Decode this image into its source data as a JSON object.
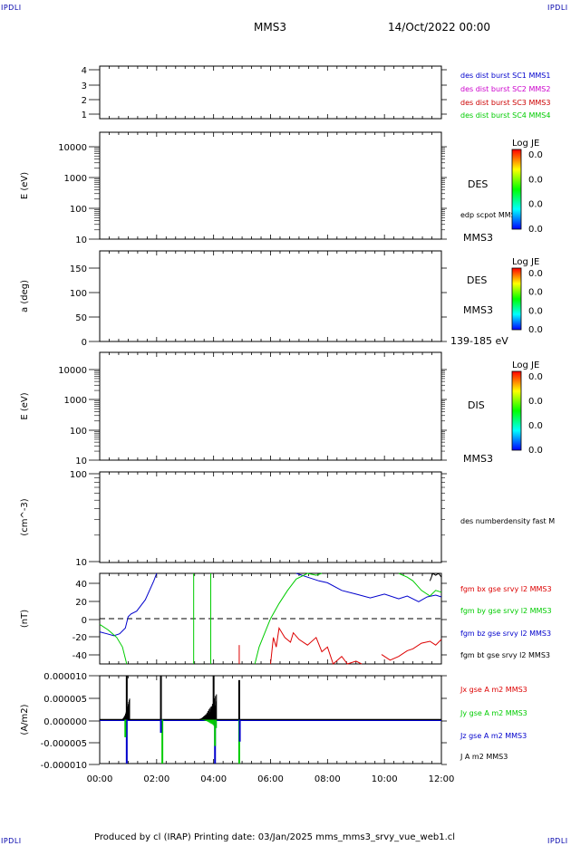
{
  "corner_label": "IPDLI",
  "header": {
    "mission": "MMS3",
    "date": "14/Oct/2022 00:00"
  },
  "footer": "Produced by cl (IRAP)   Printing date: 03/Jan/2025   mms_mms3_srvy_vue_web1.cl",
  "colors": {
    "mms1": "#0000cc",
    "mms2": "#cc00cc",
    "mms3": "#cc0000",
    "mms4": "#00cc00",
    "red": "#dd0000",
    "green": "#00cc00",
    "blue": "#0000cc",
    "black": "#000000"
  },
  "chart_data": [
    {
      "type": "line",
      "id": "burst",
      "yticks": [
        "4",
        "3",
        "2",
        "1"
      ],
      "legend": [
        {
          "label": "des dist burst SC1 MMS1",
          "color": "#0000cc"
        },
        {
          "label": "des dist burst SC2 MMS2",
          "color": "#cc00cc"
        },
        {
          "label": "des dist burst SC3 MMS3",
          "color": "#cc0000"
        },
        {
          "label": "des dist burst SC4 MMS4",
          "color": "#00cc00"
        }
      ]
    },
    {
      "type": "heatmap",
      "id": "des-energy",
      "ylabel": "E (eV)",
      "yscale": "log",
      "yticks": [
        "10000",
        "1000",
        "100",
        "10"
      ],
      "label": "DES",
      "sublabel": "edp scpot MMS3",
      "bottom_label": "MMS3",
      "colorbar": {
        "title": "Log JE",
        "ticks": [
          "0.0",
          "0.0",
          "0.0",
          "0.0"
        ]
      }
    },
    {
      "type": "heatmap",
      "id": "des-pitch",
      "ylabel": "a (deg)",
      "yticks": [
        "150",
        "100",
        "50",
        "0"
      ],
      "label": "DES",
      "sublabel": "MMS3",
      "bottom_label": "139-185 eV",
      "colorbar": {
        "title": "Log JE",
        "ticks": [
          "0.0",
          "0.0",
          "0.0",
          "0.0"
        ]
      }
    },
    {
      "type": "heatmap",
      "id": "dis-energy",
      "ylabel": "E (eV)",
      "yscale": "log",
      "yticks": [
        "10000",
        "1000",
        "100",
        "10"
      ],
      "label": "DIS",
      "bottom_label": "MMS3",
      "colorbar": {
        "title": "Log JE",
        "ticks": [
          "0.0",
          "0.0",
          "0.0",
          "0.0"
        ]
      }
    },
    {
      "type": "line",
      "id": "density",
      "ylabel": "(cm^-3)",
      "yscale": "log",
      "yticks": [
        "100",
        "10"
      ],
      "legend": [
        {
          "label": "des numberdensity fast M",
          "color": "#000000"
        }
      ]
    },
    {
      "type": "line",
      "id": "fgm",
      "ylabel": "(nT)",
      "ylim": [
        -48,
        48
      ],
      "yticks": [
        "40",
        "20",
        "0",
        "-20",
        "-40"
      ],
      "legend": [
        {
          "label": "fgm bx gse srvy l2 MMS3",
          "color": "#dd0000"
        },
        {
          "label": "fgm by gse srvy l2 MMS3",
          "color": "#00cc00"
        },
        {
          "label": "fgm bz gse srvy l2 MMS3",
          "color": "#0000cc"
        },
        {
          "label": "fgm bt gse srvy l2 MMS3",
          "color": "#000000"
        }
      ],
      "series": [
        {
          "name": "fgm bz gse srvy l2 MMS3",
          "color": "#0000cc",
          "x": [
            0,
            0.25,
            0.5,
            0.7,
            0.9,
            1.0,
            1.1,
            1.3,
            1.6,
            1.9,
            2.0
          ],
          "y": [
            -14,
            -16,
            -18,
            -16,
            -10,
            2,
            5,
            8,
            20,
            40,
            48
          ]
        },
        {
          "name": "fgm bz gse srvy l2 MMS3",
          "color": "#0000cc",
          "x": [
            6.9,
            7.3,
            7.7,
            8.0,
            8.5,
            9.0,
            9.5,
            10.0,
            10.5,
            10.8,
            11.2,
            11.5,
            11.8,
            12.0
          ],
          "y": [
            48,
            44,
            40,
            38,
            30,
            26,
            22,
            26,
            21,
            24,
            18,
            23,
            25,
            23
          ]
        },
        {
          "name": "fgm by gse srvy l2 MMS3",
          "color": "#00cc00",
          "x": [
            0,
            0.3,
            0.6,
            0.8,
            0.95
          ],
          "y": [
            -6,
            -12,
            -20,
            -30,
            -48
          ]
        },
        {
          "name": "fgm by gse srvy l2 MMS3",
          "color": "#00cc00",
          "x": [
            5.45,
            5.6,
            5.8,
            6.0,
            6.3,
            6.6,
            6.9,
            7.3,
            7.6,
            7.8
          ],
          "y": [
            -48,
            -30,
            -15,
            0,
            16,
            30,
            42,
            48,
            46,
            48
          ]
        },
        {
          "name": "fgm by gse srvy l2 MMS3",
          "color": "#00cc00",
          "x": [
            10.5,
            10.8,
            11.0,
            11.3,
            11.6,
            11.8,
            12.0
          ],
          "y": [
            48,
            44,
            40,
            30,
            24,
            30,
            28
          ]
        },
        {
          "name": "fgm bx gse srvy l2 MMS3",
          "color": "#dd0000",
          "x": [
            6.0,
            6.1,
            6.2,
            6.3,
            6.5,
            6.7,
            6.8,
            7.0,
            7.3,
            7.6,
            7.8,
            8.0,
            8.2,
            8.5,
            8.7,
            9.0,
            9.2
          ],
          "y": [
            -48,
            -20,
            -30,
            -10,
            -20,
            -25,
            -15,
            -22,
            -28,
            -20,
            -35,
            -30,
            -48,
            -40,
            -48,
            -45,
            -48
          ]
        },
        {
          "name": "fgm bx gse srvy l2 MMS3",
          "color": "#dd0000",
          "x": [
            9.9,
            10.2,
            10.5,
            10.8,
            11.0,
            11.3,
            11.6,
            11.8,
            12.0
          ],
          "y": [
            -38,
            -44,
            -40,
            -34,
            -32,
            -26,
            -24,
            -28,
            -22
          ]
        },
        {
          "name": "fgm bt gse srvy l2 MMS3",
          "color": "#000000",
          "x": [
            11.6,
            11.7,
            11.8,
            11.9,
            12.0
          ],
          "y": [
            40,
            48,
            46,
            48,
            44
          ]
        }
      ],
      "vertical_spikes": [
        {
          "x": 3.3,
          "color": "#00cc00",
          "y0": 48,
          "y1": -48
        },
        {
          "x": 3.9,
          "color": "#00cc00",
          "y0": 48,
          "y1": -48
        },
        {
          "x": 4.9,
          "color": "#dd0000",
          "y0": -48,
          "y1": -28
        }
      ]
    },
    {
      "type": "line",
      "id": "current",
      "ylabel": "(A/m2)",
      "ylim": [
        -1e-05,
        1e-05
      ],
      "yticks": [
        "0.000010",
        "0.000005",
        "0.000000",
        "-0.000005",
        "-0.000010"
      ],
      "x_ticks": [
        "00:00",
        "02:00",
        "04:00",
        "06:00",
        "08:00",
        "10:00",
        "12:00"
      ],
      "xlim": [
        0,
        12
      ],
      "legend": [
        {
          "label": "Jx gse A m2 MMS3",
          "color": "#dd0000"
        },
        {
          "label": "Jy gse A m2 MMS3",
          "color": "#00cc00"
        },
        {
          "label": "Jz gse A m2 MMS3",
          "color": "#0000cc"
        },
        {
          "label": "J A m2 MMS3",
          "color": "#000000"
        }
      ],
      "spikes": [
        {
          "x": 0.95,
          "color": "#000000",
          "v": 1e-05
        },
        {
          "x": 0.95,
          "color": "#0000cc",
          "v": -1e-05
        },
        {
          "x": 0.9,
          "color": "#00cc00",
          "v": -4e-06
        },
        {
          "x": 2.15,
          "color": "#000000",
          "v": 1e-05
        },
        {
          "x": 2.2,
          "color": "#00cc00",
          "v": -1e-05
        },
        {
          "x": 2.15,
          "color": "#0000cc",
          "v": -3e-06
        },
        {
          "x": 4.0,
          "color": "#000000",
          "v": 1e-05
        },
        {
          "x": 4.05,
          "color": "#0000cc",
          "v": -1e-05
        },
        {
          "x": 4.05,
          "color": "#00cc00",
          "v": -6e-06
        },
        {
          "x": 4.9,
          "color": "#000000",
          "v": 9e-06
        },
        {
          "x": 4.9,
          "color": "#00cc00",
          "v": -1e-05
        },
        {
          "x": 4.92,
          "color": "#0000cc",
          "v": -5e-06
        }
      ],
      "bursts": [
        {
          "x0": 0.75,
          "x1": 1.05,
          "amp": 5e-06,
          "color": "#000000"
        },
        {
          "x0": 3.4,
          "x1": 4.1,
          "amp": 6e-06,
          "color": "#000000"
        },
        {
          "x0": 3.5,
          "x1": 4.1,
          "amp": -2e-06,
          "color": "#00cc00"
        }
      ]
    }
  ]
}
